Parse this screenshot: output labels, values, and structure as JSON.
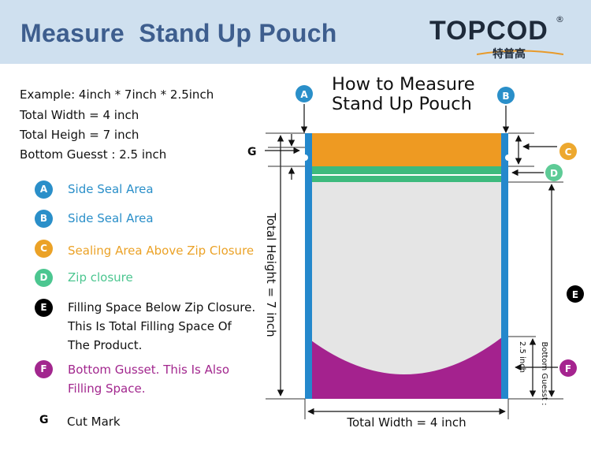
{
  "header": {
    "title": "Measure  Stand Up Pouch",
    "logo": {
      "brand": "TOPCOD",
      "registered": "®",
      "subtitle": "特普高"
    }
  },
  "example": {
    "line1": "Example: 4inch * 7inch * 2.5inch",
    "line2": "Total Width = 4 inch",
    "line3": "Total Heigh = 7 inch",
    "line4": "Bottom Guesst : 2.5 inch"
  },
  "legend": [
    {
      "letter": "A",
      "text": "Side Seal Area",
      "color": "#2a8fc9"
    },
    {
      "letter": "B",
      "text": "Side Seal Area",
      "color": "#2a8fc9"
    },
    {
      "letter": "C",
      "text": "Sealing Area Above Zip Closure",
      "color": "#eba227"
    },
    {
      "letter": "D",
      "text": "Zip closure",
      "color": "#4cc690"
    },
    {
      "letter": "E",
      "lines": [
        "Filling Space Below Zip Closure.",
        "This Is Total Filling Space Of",
        "The Product."
      ],
      "color": "#000000",
      "text_color": "#111111"
    },
    {
      "letter": "F",
      "lines": [
        "Bottom Gusset. This Is Also",
        "Filling Space."
      ],
      "color": "#a2278e",
      "text_color": "#a2278e"
    },
    {
      "letter": "G",
      "text": "Cut Mark",
      "color": "#000000"
    }
  ],
  "diagram": {
    "howto_line1": "How to Measure",
    "howto_line2": "Stand Up Pouch",
    "labels": {
      "A": "A",
      "B": "B",
      "C": "C",
      "D": "D",
      "E": "E",
      "F": "F",
      "G": "G"
    },
    "total_height": "Total Height = 7 inch",
    "total_width": "Total Width = 4 inch",
    "gusset_small": "2.5 inch",
    "gusset_side": "Bottom Guesst :",
    "colors": {
      "side_seal": "#2488cc",
      "top_seal": "#ee9a22",
      "zip": "#3dba7d",
      "body": "#e5e5e5",
      "gusset": "#a4228e",
      "c_badge": "#eda82e",
      "d_badge": "#5ecb96",
      "f_badge": "#a5238f",
      "ab_badge": "#2a8fc9"
    }
  }
}
